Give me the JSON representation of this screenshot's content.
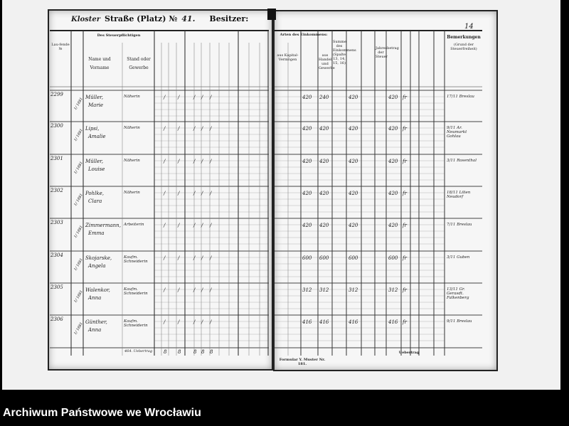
{
  "archive_caption": "Archiwum Państwowe we Wrocławiu",
  "left_page": {
    "street_handwritten": "Kloster",
    "street_label": "Straße (Platz) №",
    "house_number": "41.",
    "owner_label": "Besitzer:",
    "headers": {
      "running_no": "Lau-fende №",
      "taxpayer": "Des Steuerpflichtigen",
      "name": "Name und Vorname",
      "stand": "Stand oder Gewerbe"
    },
    "total_label": "464. Uebertrag",
    "totals": [
      "8",
      "8",
      "8",
      "8",
      "8"
    ]
  },
  "right_page": {
    "page_number": "14",
    "headers": {
      "income_types": "Arten des Einkommens:",
      "capital": "aus Kapital-Vermögen",
      "trade": "aus Handel und Gewerbe",
      "sum": "Summe des Einkommens (Spalte 13, 14, 15, 16)",
      "annual": "Jahresbetrag der Steuer",
      "remarks": "Bemerkungen",
      "remarks_sub": "(Grund der Steuerfreiheit)"
    },
    "carry_label": "Uebertrag",
    "footer": "Formular Y. Muster Nr. 181."
  },
  "rows": [
    {
      "no": "2299",
      "date": "1/ 1881",
      "name": "Müller,",
      "first": "Marie",
      "stand": "Näherin",
      "v1": "420",
      "v2": "240",
      "v3": "420",
      "v4": "420",
      "mark": "fr",
      "remark": "17/11 Breslau"
    },
    {
      "no": "2300",
      "date": "1/ 1881",
      "name": "Lipsi,",
      "first": "Amalie",
      "stand": "Näherin",
      "v1": "420",
      "v2": "420",
      "v3": "420",
      "v4": "420",
      "mark": "fr",
      "remark": "9/11 Ar. Neumarkt Gohlau"
    },
    {
      "no": "2301",
      "date": "1/ 1881",
      "name": "Müller,",
      "first": "Louise",
      "stand": "Näherin",
      "v1": "420",
      "v2": "420",
      "v3": "420",
      "v4": "420",
      "mark": "fr",
      "remark": "3/11 Rosenthal"
    },
    {
      "no": "2302",
      "date": "1/ 1881",
      "name": "Pohlke,",
      "first": "Clara",
      "stand": "Näherin",
      "v1": "420",
      "v2": "420",
      "v3": "420",
      "v4": "420",
      "mark": "fr",
      "remark": "18/11 Lilien Neudorf"
    },
    {
      "no": "2303",
      "date": "1/ 1881",
      "name": "Zimmermann,",
      "first": "Emma",
      "stand": "Arbeiterin",
      "v1": "420",
      "v2": "420",
      "v3": "420",
      "v4": "420",
      "mark": "fr",
      "remark": "7/11 Breslau"
    },
    {
      "no": "2304",
      "date": "1/ 1881",
      "name": "Skojarske,",
      "first": "Angela",
      "stand": "Kaufm. Schneiderin",
      "v1": "600",
      "v2": "600",
      "v3": "600",
      "v4": "600",
      "mark": "fr",
      "remark": "3/11 Guben"
    },
    {
      "no": "2305",
      "date": "1/ 1881",
      "name": "Walenkor,",
      "first": "Anna",
      "stand": "Kaufm. Schneiderin",
      "v1": "312",
      "v2": "312",
      "v3": "312",
      "v4": "312",
      "mark": "fr",
      "remark": "13/11 Gr. Gerasdt. Falkenberg"
    },
    {
      "no": "2306",
      "date": "1/ 1881",
      "name": "Günther,",
      "first": "Anna",
      "stand": "Kaufm. Schneiderin",
      "v1": "416",
      "v2": "416",
      "v3": "416",
      "v4": "416",
      "mark": "fr",
      "remark": "9/11 Breslau"
    }
  ]
}
